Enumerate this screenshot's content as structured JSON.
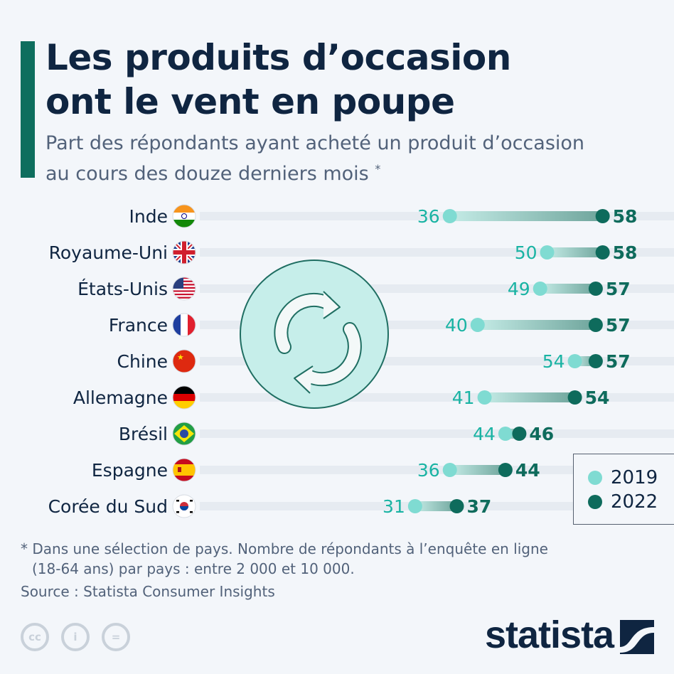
{
  "title_lines": [
    "Les produits d’occasion",
    "ont le vent en poupe"
  ],
  "subtitle_lines": [
    "Part des répondants ayant acheté un produit d’occasion",
    "au cours des douze derniers mois"
  ],
  "subtitle_mark": "*",
  "colors": {
    "accent": "#0e6e5e",
    "c2019": "#7fdbd2",
    "c2022": "#0e6b5c",
    "label2019": "#19b3a3",
    "label2022": "#0e6b5c",
    "track": "#e6ebf1",
    "title": "#0f2541"
  },
  "chart_data": {
    "type": "dumbbell",
    "categories": [
      "Inde",
      "Royaume-Uni",
      "États-Unis",
      "France",
      "Chine",
      "Allemagne",
      "Brésil",
      "Espagne",
      "Corée du Sud"
    ],
    "flags": [
      "india-flag",
      "uk-flag",
      "usa-flag",
      "france-flag",
      "china-flag",
      "germany-flag",
      "brazil-flag",
      "spain-flag",
      "south-korea-flag"
    ],
    "series": [
      {
        "name": "2019",
        "values": [
          36,
          50,
          49,
          40,
          54,
          41,
          44,
          36,
          31
        ]
      },
      {
        "name": "2022",
        "values": [
          58,
          58,
          57,
          57,
          57,
          54,
          46,
          44,
          37
        ]
      }
    ],
    "xlim": [
      0,
      100
    ],
    "grid": false,
    "legend": "bottom-right"
  },
  "legend": {
    "items": [
      "2019",
      "2022"
    ]
  },
  "footnote_lines": [
    "* Dans une sélection de pays. Nombre de répondants à l’enquête en ligne",
    "(18-64 ans) par pays : entre 2 000 et 10 000."
  ],
  "source": "Source : Statista Consumer Insights",
  "license_icons": [
    "cc-icon",
    "attribution-icon",
    "no-derivatives-icon"
  ],
  "license_labels": [
    "cc",
    "i",
    "="
  ],
  "logo": "statista",
  "decor_icon": "recycle-arrows-icon"
}
